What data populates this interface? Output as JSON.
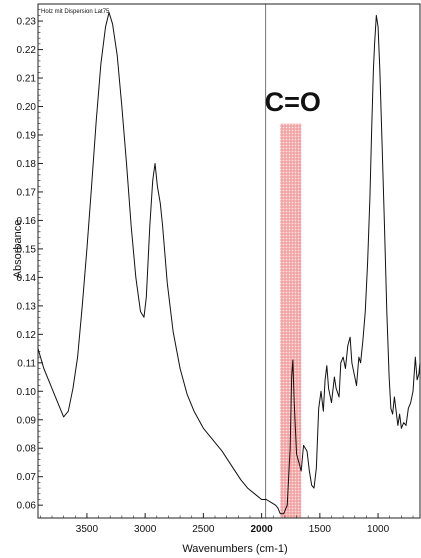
{
  "chart_data": {
    "type": "line",
    "title": "Holz mit Dispersion   Lat75",
    "xlabel": "Wavenumbers (cm-1)",
    "ylabel": "Absorbance",
    "x_reversed": true,
    "xlim": [
      3920,
      640
    ],
    "ylim": [
      0.0555,
      0.236
    ],
    "xticks": [
      {
        "value": 3500,
        "label": "3500"
      },
      {
        "value": 3000,
        "label": "3000"
      },
      {
        "value": 2500,
        "label": "2500"
      },
      {
        "value": 2000,
        "label": "2000"
      },
      {
        "value": 1500,
        "label": "1500"
      },
      {
        "value": 1000,
        "label": "1000"
      }
    ],
    "yticks": [
      {
        "value": 0.06,
        "label": "0.06"
      },
      {
        "value": 0.07,
        "label": "0.07"
      },
      {
        "value": 0.08,
        "label": "0.08"
      },
      {
        "value": 0.09,
        "label": "0.09"
      },
      {
        "value": 0.1,
        "label": "0.10"
      },
      {
        "value": 0.11,
        "label": "0.11"
      },
      {
        "value": 0.12,
        "label": "0.12"
      },
      {
        "value": 0.13,
        "label": "0.13"
      },
      {
        "value": 0.14,
        "label": "0.14"
      },
      {
        "value": 0.15,
        "label": "0.15"
      },
      {
        "value": 0.16,
        "label": "0.16"
      },
      {
        "value": 0.17,
        "label": "0.17"
      },
      {
        "value": 0.18,
        "label": "0.18"
      },
      {
        "value": 0.19,
        "label": "0.19"
      },
      {
        "value": 0.2,
        "label": "0.20"
      },
      {
        "value": 0.21,
        "label": "0.21"
      },
      {
        "value": 0.22,
        "label": "0.22"
      },
      {
        "value": 0.23,
        "label": "0.23"
      }
    ],
    "highlight_band": {
      "label": "C=O",
      "x_range": [
        1840,
        1660
      ],
      "color": "#f08a8a"
    },
    "vertical_marker_x": 1965,
    "series": [
      {
        "color": "#111111",
        "points": [
          [
            3920,
            0.115
          ],
          [
            3870,
            0.108
          ],
          [
            3820,
            0.103
          ],
          [
            3780,
            0.099
          ],
          [
            3740,
            0.095
          ],
          [
            3700,
            0.091
          ],
          [
            3660,
            0.093
          ],
          [
            3620,
            0.101
          ],
          [
            3580,
            0.112
          ],
          [
            3540,
            0.13
          ],
          [
            3500,
            0.15
          ],
          [
            3460,
            0.172
          ],
          [
            3420,
            0.195
          ],
          [
            3380,
            0.215
          ],
          [
            3340,
            0.228
          ],
          [
            3310,
            0.233
          ],
          [
            3280,
            0.229
          ],
          [
            3240,
            0.218
          ],
          [
            3200,
            0.2
          ],
          [
            3160,
            0.18
          ],
          [
            3120,
            0.158
          ],
          [
            3080,
            0.14
          ],
          [
            3040,
            0.128
          ],
          [
            3010,
            0.126
          ],
          [
            2990,
            0.133
          ],
          [
            2960,
            0.158
          ],
          [
            2935,
            0.174
          ],
          [
            2915,
            0.18
          ],
          [
            2895,
            0.172
          ],
          [
            2870,
            0.166
          ],
          [
            2850,
            0.158
          ],
          [
            2810,
            0.138
          ],
          [
            2760,
            0.121
          ],
          [
            2700,
            0.108
          ],
          [
            2640,
            0.099
          ],
          [
            2580,
            0.093
          ],
          [
            2500,
            0.087
          ],
          [
            2420,
            0.083
          ],
          [
            2340,
            0.079
          ],
          [
            2260,
            0.074
          ],
          [
            2180,
            0.069
          ],
          [
            2120,
            0.066
          ],
          [
            2060,
            0.064
          ],
          [
            2000,
            0.062
          ],
          [
            1960,
            0.062
          ],
          [
            1920,
            0.061
          ],
          [
            1880,
            0.06
          ],
          [
            1860,
            0.059
          ],
          [
            1840,
            0.057
          ],
          [
            1810,
            0.057
          ],
          [
            1780,
            0.06
          ],
          [
            1755,
            0.08
          ],
          [
            1742,
            0.105
          ],
          [
            1732,
            0.111
          ],
          [
            1720,
            0.096
          ],
          [
            1700,
            0.078
          ],
          [
            1680,
            0.075
          ],
          [
            1660,
            0.072
          ],
          [
            1640,
            0.081
          ],
          [
            1610,
            0.079
          ],
          [
            1590,
            0.072
          ],
          [
            1570,
            0.067
          ],
          [
            1550,
            0.066
          ],
          [
            1530,
            0.073
          ],
          [
            1510,
            0.094
          ],
          [
            1490,
            0.1
          ],
          [
            1470,
            0.093
          ],
          [
            1455,
            0.104
          ],
          [
            1440,
            0.109
          ],
          [
            1425,
            0.101
          ],
          [
            1400,
            0.096
          ],
          [
            1375,
            0.105
          ],
          [
            1360,
            0.101
          ],
          [
            1335,
            0.098
          ],
          [
            1320,
            0.11
          ],
          [
            1300,
            0.112
          ],
          [
            1280,
            0.108
          ],
          [
            1260,
            0.116
          ],
          [
            1240,
            0.119
          ],
          [
            1225,
            0.11
          ],
          [
            1205,
            0.106
          ],
          [
            1185,
            0.102
          ],
          [
            1165,
            0.112
          ],
          [
            1150,
            0.11
          ],
          [
            1130,
            0.118
          ],
          [
            1110,
            0.128
          ],
          [
            1090,
            0.145
          ],
          [
            1070,
            0.168
          ],
          [
            1055,
            0.192
          ],
          [
            1040,
            0.213
          ],
          [
            1030,
            0.222
          ],
          [
            1015,
            0.232
          ],
          [
            1000,
            0.228
          ],
          [
            985,
            0.213
          ],
          [
            965,
            0.186
          ],
          [
            945,
            0.158
          ],
          [
            925,
            0.128
          ],
          [
            905,
            0.105
          ],
          [
            890,
            0.094
          ],
          [
            875,
            0.092
          ],
          [
            860,
            0.098
          ],
          [
            845,
            0.093
          ],
          [
            830,
            0.088
          ],
          [
            815,
            0.092
          ],
          [
            800,
            0.087
          ],
          [
            780,
            0.089
          ],
          [
            760,
            0.088
          ],
          [
            740,
            0.094
          ],
          [
            720,
            0.096
          ],
          [
            700,
            0.1
          ],
          [
            680,
            0.112
          ],
          [
            665,
            0.104
          ],
          [
            650,
            0.106
          ],
          [
            640,
            0.11
          ]
        ]
      }
    ]
  }
}
